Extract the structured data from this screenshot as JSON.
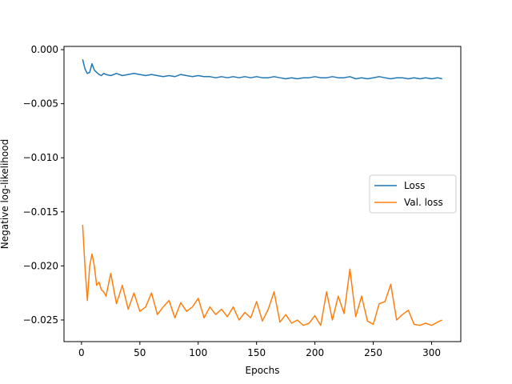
{
  "chart_data": {
    "type": "line",
    "title": "",
    "xlabel": "Epochs",
    "ylabel": "Negative log-likelihood",
    "xlim": [
      -15,
      325
    ],
    "ylim": [
      -0.027,
      0.0003
    ],
    "xticks": [
      0,
      50,
      100,
      150,
      200,
      250,
      300
    ],
    "xtick_labels": [
      "0",
      "50",
      "100",
      "150",
      "200",
      "250",
      "300"
    ],
    "yticks": [
      0.0,
      -0.005,
      -0.01,
      -0.015,
      -0.02,
      -0.025
    ],
    "ytick_labels": [
      "0.000",
      "−0.005",
      "−0.010",
      "−0.015",
      "−0.020",
      "−0.025"
    ],
    "grid": false,
    "legend_position": "center-right",
    "x": [
      1,
      3,
      5,
      7,
      9,
      11,
      13,
      15,
      17,
      19,
      21,
      25,
      30,
      35,
      40,
      45,
      50,
      55,
      60,
      65,
      70,
      75,
      80,
      85,
      90,
      95,
      100,
      105,
      110,
      115,
      120,
      125,
      130,
      135,
      140,
      145,
      150,
      155,
      160,
      165,
      170,
      175,
      180,
      185,
      190,
      195,
      200,
      205,
      210,
      215,
      220,
      225,
      230,
      235,
      240,
      245,
      250,
      255,
      260,
      265,
      270,
      275,
      280,
      285,
      290,
      295,
      300,
      305,
      309
    ],
    "series": [
      {
        "name": "Loss",
        "color": "#1f77b4",
        "values": [
          -0.0009,
          -0.0018,
          -0.0022,
          -0.0021,
          -0.0013,
          -0.0019,
          -0.0021,
          -0.0023,
          -0.0024,
          -0.0022,
          -0.0023,
          -0.0024,
          -0.0022,
          -0.0024,
          -0.0023,
          -0.0022,
          -0.0023,
          -0.0024,
          -0.0023,
          -0.0024,
          -0.0025,
          -0.0024,
          -0.0025,
          -0.0023,
          -0.0024,
          -0.0025,
          -0.0024,
          -0.0025,
          -0.0025,
          -0.0026,
          -0.0025,
          -0.0026,
          -0.0025,
          -0.0026,
          -0.0025,
          -0.0026,
          -0.0025,
          -0.0026,
          -0.0026,
          -0.0025,
          -0.0026,
          -0.0027,
          -0.0026,
          -0.0027,
          -0.0026,
          -0.0026,
          -0.0025,
          -0.0026,
          -0.0026,
          -0.0025,
          -0.0026,
          -0.0026,
          -0.0025,
          -0.0027,
          -0.0026,
          -0.0027,
          -0.0026,
          -0.0025,
          -0.0026,
          -0.0027,
          -0.0026,
          -0.0026,
          -0.0027,
          -0.0026,
          -0.0027,
          -0.0026,
          -0.0027,
          -0.0026,
          -0.0027
        ]
      },
      {
        "name": "Val. loss",
        "color": "#ff7f0e",
        "values": [
          -0.0162,
          -0.0202,
          -0.0232,
          -0.02,
          -0.0189,
          -0.02,
          -0.0218,
          -0.0215,
          -0.0222,
          -0.0224,
          -0.0228,
          -0.0207,
          -0.0235,
          -0.0218,
          -0.024,
          -0.0225,
          -0.0242,
          -0.0238,
          -0.0225,
          -0.0245,
          -0.0238,
          -0.0232,
          -0.0248,
          -0.0234,
          -0.0242,
          -0.0238,
          -0.023,
          -0.0248,
          -0.0238,
          -0.0245,
          -0.024,
          -0.0247,
          -0.0238,
          -0.025,
          -0.0243,
          -0.0248,
          -0.0233,
          -0.0251,
          -0.024,
          -0.0224,
          -0.0252,
          -0.0245,
          -0.0253,
          -0.025,
          -0.0255,
          -0.0253,
          -0.0246,
          -0.0255,
          -0.0224,
          -0.025,
          -0.0228,
          -0.0244,
          -0.0203,
          -0.0247,
          -0.0228,
          -0.0251,
          -0.0254,
          -0.0235,
          -0.0233,
          -0.0217,
          -0.025,
          -0.0245,
          -0.0241,
          -0.0254,
          -0.0255,
          -0.0253,
          -0.0255,
          -0.0252,
          -0.025
        ]
      }
    ]
  }
}
